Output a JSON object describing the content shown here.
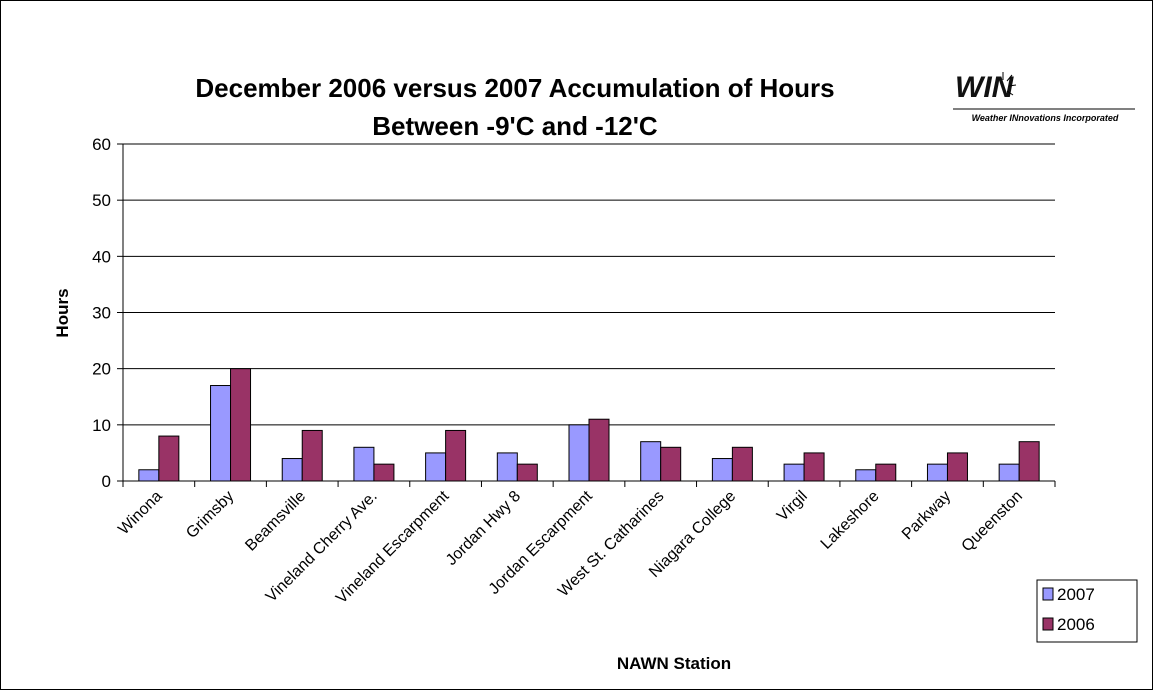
{
  "chart_data": {
    "type": "bar",
    "title_lines": [
      "December 2006 versus 2007 Accumulation of Hours",
      "Between -9'C and -12'C"
    ],
    "logo": {
      "text": "WIN",
      "tagline": "Weather INnovations Incorporated"
    },
    "x_label": "NAWN Station",
    "y_label": "Hours",
    "categories": [
      "Winona",
      "Grimsby",
      "Beamsville",
      "Vineland Cherry Ave.",
      "Vineland Escarpment",
      "Jordan Hwy 8",
      "Jordan Escarpment",
      "West St. Catharines",
      "Niagara College",
      "Virgil",
      "Lakeshore",
      "Parkway",
      "Queenston"
    ],
    "series": [
      {
        "name": "2007",
        "color": "#9999ff",
        "values": [
          2,
          17,
          4,
          6,
          5,
          5,
          10,
          7,
          4,
          3,
          2,
          3,
          3
        ]
      },
      {
        "name": "2006",
        "color": "#993366",
        "values": [
          8,
          20,
          9,
          3,
          9,
          3,
          11,
          6,
          6,
          5,
          3,
          5,
          7
        ]
      }
    ],
    "ylim": [
      0,
      60
    ],
    "yticks": [
      0,
      10,
      20,
      30,
      40,
      50,
      60
    ],
    "grid": true,
    "legend": "bottom-right"
  }
}
